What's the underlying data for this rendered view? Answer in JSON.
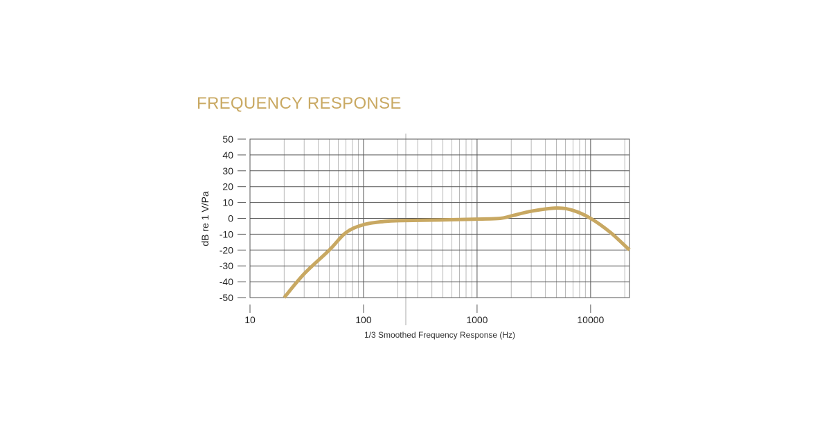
{
  "title": "FREQUENCY RESPONSE",
  "chart_data": {
    "type": "line",
    "title": "FREQUENCY RESPONSE",
    "xlabel": "1/3 Smoothed Frequency Response (Hz)",
    "ylabel": "dB re 1 V/Pa",
    "xscale": "log",
    "xlim": [
      10,
      22000
    ],
    "ylim": [
      -50,
      50
    ],
    "xticks": [
      10,
      100,
      1000,
      10000
    ],
    "xtick_labels": [
      "10",
      "100",
      "1000",
      "10000"
    ],
    "yticks": [
      50,
      40,
      30,
      20,
      10,
      0,
      -10,
      -20,
      -30,
      -40,
      -50
    ],
    "ytick_labels": [
      "50",
      "40",
      "30",
      "20",
      "10",
      "0",
      "-10",
      "-20",
      "-30",
      "-40",
      "-50"
    ],
    "grid": true,
    "line_color": "#C8A862",
    "series": [
      {
        "x": [
          20,
          30,
          50,
          70,
          100,
          150,
          200,
          500,
          1000,
          1600,
          2000,
          3000,
          5000,
          7000,
          10000,
          15000,
          22000
        ],
        "y": [
          -50,
          -35,
          -20,
          -9,
          -4,
          -2,
          -1.5,
          -1,
          -0.5,
          0,
          1.5,
          4.5,
          6.5,
          5,
          0,
          -9,
          -20
        ]
      }
    ]
  }
}
